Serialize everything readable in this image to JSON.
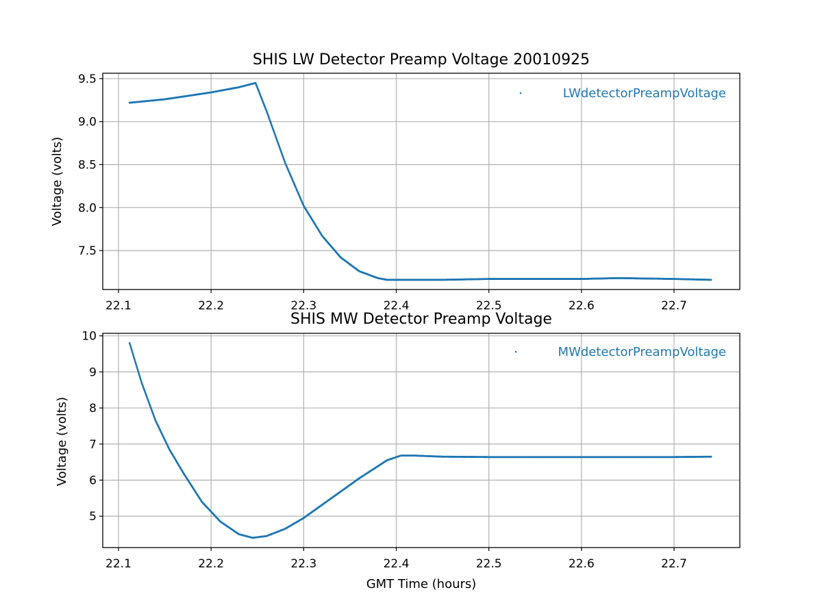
{
  "chart_data": [
    {
      "type": "scatter",
      "title": "SHIS LW Detector Preamp Voltage 20010925",
      "xlabel": "",
      "ylabel": "Voltage (volts)",
      "xlim": [
        22.083,
        22.771
      ],
      "ylim": [
        7.047,
        9.563
      ],
      "xticks": [
        22.1,
        22.2,
        22.3,
        22.4,
        22.5,
        22.6,
        22.7
      ],
      "yticks": [
        7.5,
        8.0,
        8.5,
        9.0,
        9.5
      ],
      "grid": true,
      "legend_position": "top-right",
      "color": "#1f77b4",
      "series": [
        {
          "name": "LWdetectorPreampVoltage",
          "x": [
            22.112,
            22.15,
            22.2,
            22.23,
            22.248,
            22.26,
            22.28,
            22.3,
            22.32,
            22.34,
            22.36,
            22.38,
            22.39,
            22.4,
            22.45,
            22.5,
            22.55,
            22.6,
            22.64,
            22.7,
            22.74
          ],
          "y": [
            9.22,
            9.26,
            9.34,
            9.4,
            9.45,
            9.12,
            8.52,
            8.02,
            7.67,
            7.42,
            7.26,
            7.18,
            7.16,
            7.16,
            7.16,
            7.17,
            7.17,
            7.17,
            7.18,
            7.17,
            7.16
          ]
        }
      ]
    },
    {
      "type": "scatter",
      "title": "SHIS MW Detector Preamp Voltage",
      "xlabel": "GMT Time (hours)",
      "ylabel": "Voltage (volts)",
      "xlim": [
        22.083,
        22.771
      ],
      "ylim": [
        4.13,
        10.07
      ],
      "xticks": [
        22.1,
        22.2,
        22.3,
        22.4,
        22.5,
        22.6,
        22.7
      ],
      "yticks": [
        5,
        6,
        7,
        8,
        9,
        10
      ],
      "grid": true,
      "legend_position": "top-right",
      "color": "#1f77b4",
      "series": [
        {
          "name": "MWdetectorPreampVoltage",
          "x": [
            22.112,
            22.125,
            22.14,
            22.155,
            22.17,
            22.19,
            22.21,
            22.23,
            22.245,
            22.26,
            22.28,
            22.3,
            22.33,
            22.36,
            22.39,
            22.405,
            22.42,
            22.45,
            22.5,
            22.6,
            22.7,
            22.74
          ],
          "y": [
            9.8,
            8.7,
            7.65,
            6.85,
            6.2,
            5.4,
            4.85,
            4.5,
            4.4,
            4.45,
            4.65,
            4.95,
            5.5,
            6.05,
            6.55,
            6.68,
            6.68,
            6.65,
            6.64,
            6.64,
            6.64,
            6.65
          ]
        }
      ]
    }
  ]
}
